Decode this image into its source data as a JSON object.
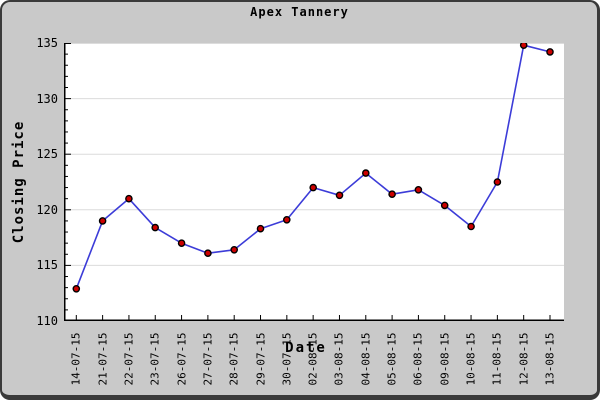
{
  "window": {
    "title": "Apex Tannery"
  },
  "chart_data": {
    "type": "line",
    "title": "Apex Tannery",
    "xlabel": "Date",
    "ylabel": "Closing Price",
    "x": [
      "14-07-15",
      "21-07-15",
      "22-07-15",
      "23-07-15",
      "26-07-15",
      "27-07-15",
      "28-07-15",
      "29-07-15",
      "30-07-15",
      "02-08-15",
      "03-08-15",
      "04-08-15",
      "05-08-15",
      "06-08-15",
      "09-08-15",
      "10-08-15",
      "11-08-15",
      "12-08-15",
      "13-08-15"
    ],
    "series": [
      {
        "name": "Closing Price",
        "values": [
          112.9,
          119.0,
          121.0,
          118.4,
          117.0,
          116.1,
          116.4,
          118.3,
          119.1,
          122.0,
          121.3,
          123.3,
          121.4,
          121.8,
          120.4,
          118.5,
          122.5,
          134.8,
          134.2
        ]
      }
    ],
    "ylim": [
      110,
      135
    ],
    "yticks": [
      110,
      115,
      120,
      125,
      130,
      135
    ],
    "grid": "horizontal",
    "legend": "none",
    "colors": {
      "frame_background": "#c9c9c9",
      "frame_border": "#3a3a3a",
      "plot_background": "#ffffff",
      "gridline": "#dcdcdc",
      "axis": "#000000",
      "line": "#3c3cd8",
      "marker_fill": "#cc0000",
      "marker_stroke": "#000000",
      "text": "#000000"
    }
  }
}
